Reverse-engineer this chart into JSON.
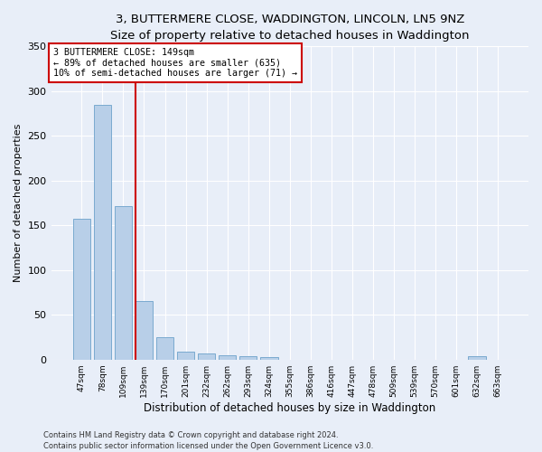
{
  "title": "3, BUTTERMERE CLOSE, WADDINGTON, LINCOLN, LN5 9NZ",
  "subtitle": "Size of property relative to detached houses in Waddington",
  "xlabel": "Distribution of detached houses by size in Waddington",
  "ylabel": "Number of detached properties",
  "bar_color": "#b8cfe8",
  "bar_edge_color": "#7aaad0",
  "background_color": "#e8eef8",
  "plot_bg_color": "#e8eef8",
  "grid_color": "#ffffff",
  "categories": [
    "47sqm",
    "78sqm",
    "109sqm",
    "139sqm",
    "170sqm",
    "201sqm",
    "232sqm",
    "262sqm",
    "293sqm",
    "324sqm",
    "355sqm",
    "386sqm",
    "416sqm",
    "447sqm",
    "478sqm",
    "509sqm",
    "539sqm",
    "570sqm",
    "601sqm",
    "632sqm",
    "663sqm"
  ],
  "values": [
    157,
    285,
    171,
    65,
    25,
    9,
    7,
    5,
    4,
    3,
    0,
    0,
    0,
    0,
    0,
    0,
    0,
    0,
    0,
    4,
    0
  ],
  "ylim": [
    0,
    350
  ],
  "yticks": [
    0,
    50,
    100,
    150,
    200,
    250,
    300,
    350
  ],
  "vline_index": 3,
  "vline_color": "#cc0000",
  "annotation_line1": "3 BUTTERMERE CLOSE: 149sqm",
  "annotation_line2": "← 89% of detached houses are smaller (635)",
  "annotation_line3": "10% of semi-detached houses are larger (71) →",
  "annotation_box_color": "#ffffff",
  "annotation_box_edge": "#cc0000",
  "footer1": "Contains HM Land Registry data © Crown copyright and database right 2024.",
  "footer2": "Contains public sector information licensed under the Open Government Licence v3.0.",
  "fig_width": 6.0,
  "fig_height": 5.0,
  "dpi": 100
}
